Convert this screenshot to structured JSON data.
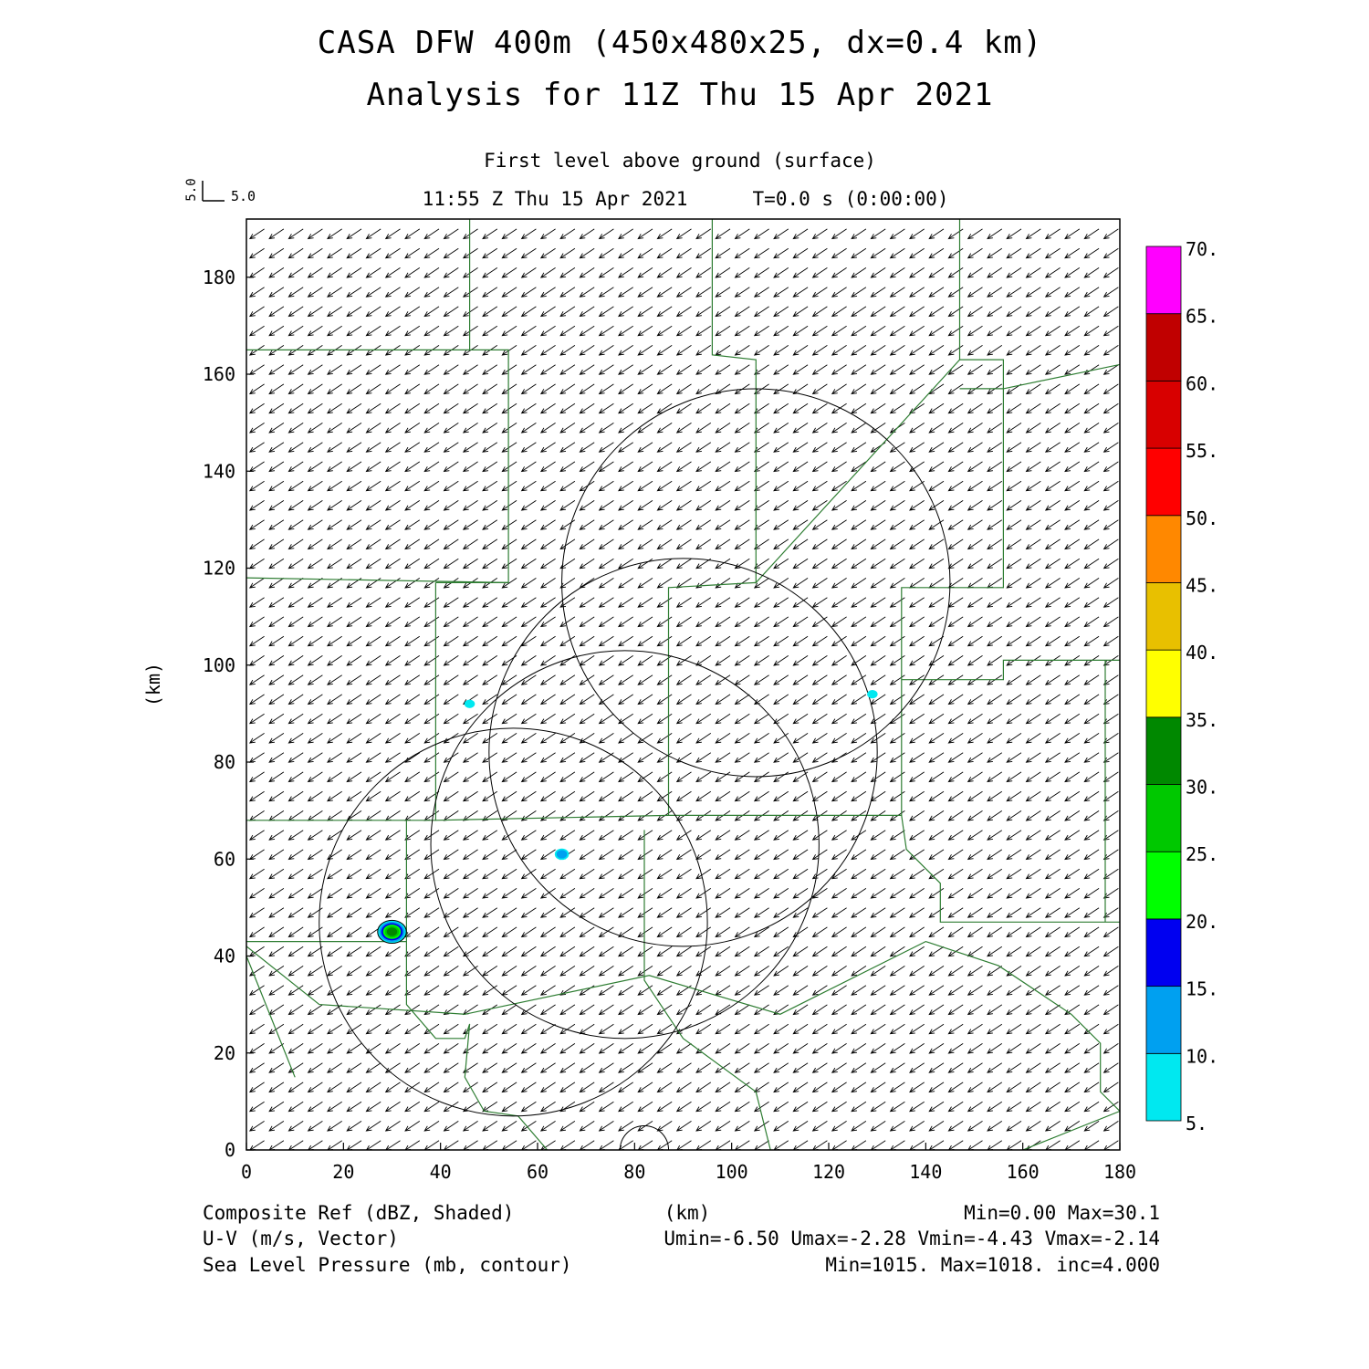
{
  "header": {
    "title_line1": "CASA DFW 400m (450x480x25, dx=0.4 km)",
    "title_line2": "Analysis for 11Z Thu 15 Apr 2021",
    "level": "First level above ground (surface)",
    "valid_time": "11:55 Z Thu 15 Apr 2021",
    "forecast_time": "T=0.0 s (0:00:00)",
    "vector_key_v": "5.0",
    "vector_key_u": "5.0"
  },
  "footer": {
    "row1_left": "Composite Ref (dBZ, Shaded)",
    "row1_mid": "(km)",
    "row1_right": "Min=0.00 Max=30.1",
    "row2_left": "U-V (m/s, Vector)",
    "row2_right": "Umin=-6.50 Umax=-2.28 Vmin=-4.43 Vmax=-2.14",
    "row3_left": "Sea Level Pressure (mb, contour)",
    "row3_right": "Min=1015. Max=1018. inc=4.000"
  },
  "chart_data": {
    "type": "heatmap",
    "xlabel": "",
    "ylabel": "(km)",
    "xlim": [
      0,
      180
    ],
    "ylim": [
      0,
      192
    ],
    "x_ticks": [
      0,
      20,
      40,
      60,
      80,
      100,
      120,
      140,
      160,
      180
    ],
    "y_ticks": [
      0,
      20,
      40,
      60,
      80,
      100,
      120,
      140,
      160,
      180
    ],
    "grid": false,
    "vector_field": {
      "spacing_km": 4,
      "u_typical": -4.8,
      "v_typical": -3.2,
      "key_length_ms": 5.0
    },
    "radar_range_rings": [
      {
        "center": [
          105,
          117
        ],
        "radius": 40
      },
      {
        "center": [
          90,
          82
        ],
        "radius": 40
      },
      {
        "center": [
          78,
          63
        ],
        "radius": 40
      },
      {
        "center": [
          55,
          47
        ],
        "radius": 40
      },
      {
        "center": [
          82,
          0
        ],
        "radius": 5
      }
    ],
    "county_boundaries": [
      [
        [
          0,
          165
        ],
        [
          46,
          165
        ],
        [
          54,
          165
        ],
        [
          54,
          117
        ],
        [
          0,
          118
        ]
      ],
      [
        [
          46,
          192
        ],
        [
          46,
          165
        ]
      ],
      [
        [
          96,
          192
        ],
        [
          96,
          164
        ],
        [
          105,
          163
        ],
        [
          105,
          117
        ],
        [
          147,
          163
        ],
        [
          147,
          192
        ]
      ],
      [
        [
          39,
          117
        ],
        [
          54,
          117
        ]
      ],
      [
        [
          105,
          117
        ],
        [
          87,
          116
        ],
        [
          87,
          69
        ],
        [
          135,
          69
        ],
        [
          135,
          116
        ],
        [
          156,
          116
        ],
        [
          156,
          163
        ],
        [
          147,
          163
        ]
      ],
      [
        [
          147,
          157
        ],
        [
          156,
          157
        ],
        [
          180,
          162
        ]
      ],
      [
        [
          39,
          117
        ],
        [
          39,
          68
        ],
        [
          0,
          68
        ]
      ],
      [
        [
          39,
          68
        ],
        [
          87,
          69
        ]
      ],
      [
        [
          33,
          68
        ],
        [
          33,
          43
        ],
        [
          0,
          43
        ]
      ],
      [
        [
          135,
          97
        ],
        [
          156,
          97
        ],
        [
          156,
          101
        ],
        [
          180,
          101
        ]
      ],
      [
        [
          135,
          69
        ],
        [
          136,
          62
        ],
        [
          143,
          55
        ],
        [
          143,
          47
        ],
        [
          180,
          47
        ],
        [
          177,
          47
        ],
        [
          177,
          101
        ]
      ],
      [
        [
          0,
          40
        ],
        [
          10,
          15
        ]
      ],
      [
        [
          33,
          43
        ],
        [
          33,
          30
        ],
        [
          39,
          23
        ],
        [
          45,
          23
        ],
        [
          46,
          26
        ],
        [
          45,
          15
        ],
        [
          49,
          8
        ],
        [
          56,
          7
        ],
        [
          62,
          0
        ]
      ],
      [
        [
          82,
          66
        ],
        [
          82,
          35
        ],
        [
          90,
          23
        ],
        [
          105,
          12
        ],
        [
          108,
          0
        ]
      ],
      [
        [
          0,
          42
        ],
        [
          15,
          30
        ],
        [
          45,
          28
        ],
        [
          83,
          36
        ],
        [
          110,
          28
        ],
        [
          140,
          43
        ],
        [
          155,
          38
        ],
        [
          170,
          28
        ],
        [
          176,
          22
        ],
        [
          176,
          12
        ],
        [
          180,
          8
        ],
        [
          160,
          0
        ]
      ]
    ],
    "reflectivity_cells": [
      {
        "x": 30,
        "y": 45,
        "dbz": 30.1
      },
      {
        "x": 65,
        "y": 61,
        "dbz": 12
      },
      {
        "x": 46,
        "y": 92,
        "dbz": 7
      },
      {
        "x": 129,
        "y": 94,
        "dbz": 7
      }
    ],
    "colorbar": {
      "labels": [
        "5.",
        "10.",
        "15.",
        "20.",
        "25.",
        "30.",
        "35.",
        "40.",
        "45.",
        "50.",
        "55.",
        "60.",
        "65.",
        "70."
      ],
      "colors": [
        "#00e8f0",
        "#00a0f0",
        "#0000f0",
        "#00ff00",
        "#00c800",
        "#008800",
        "#ffff00",
        "#e8c000",
        "#ff8800",
        "#ff0000",
        "#d80000",
        "#c00000",
        "#ff00ff"
      ]
    },
    "boundary_color": "#2e7d32"
  }
}
